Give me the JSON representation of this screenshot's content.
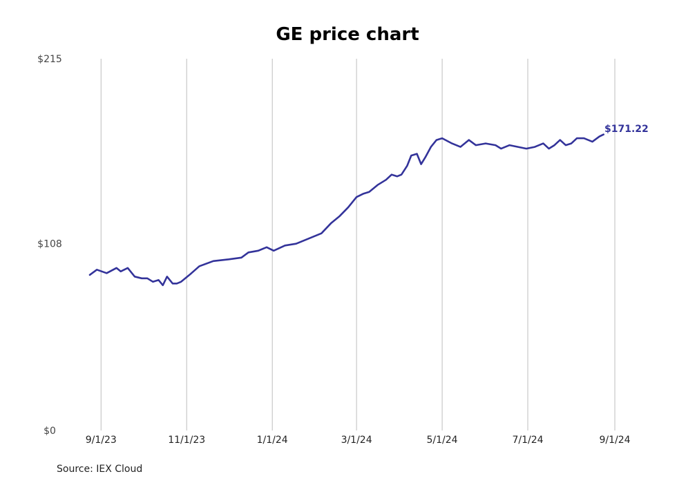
{
  "chart_data": {
    "type": "line",
    "title": "GE price chart",
    "xlabel": "",
    "ylabel": "",
    "source": "Source: IEX Cloud",
    "ylim": [
      0,
      215
    ],
    "xlim": [
      "2023-08-24",
      "2024-09-01"
    ],
    "yticks": [
      {
        "value": 0,
        "label": "$0"
      },
      {
        "value": 108,
        "label": "$108"
      },
      {
        "value": 215,
        "label": "$215"
      }
    ],
    "xticks": [
      {
        "date": "2023-09-01",
        "label": "9/1/23"
      },
      {
        "date": "2023-11-01",
        "label": "11/1/23"
      },
      {
        "date": "2024-01-01",
        "label": "1/1/24"
      },
      {
        "date": "2024-03-01",
        "label": "3/1/24"
      },
      {
        "date": "2024-05-01",
        "label": "5/1/24"
      },
      {
        "date": "2024-07-01",
        "label": "7/1/24"
      },
      {
        "date": "2024-09-01",
        "label": "9/1/24"
      }
    ],
    "grid": "vertical",
    "line_color": "#33339a",
    "end_label": "$171.22",
    "series": [
      {
        "x": [
          "2023-08-24",
          "2023-08-29",
          "2023-09-05",
          "2023-09-12",
          "2023-09-15",
          "2023-09-20",
          "2023-09-25",
          "2023-09-30",
          "2023-10-04",
          "2023-10-08",
          "2023-10-12",
          "2023-10-15",
          "2023-10-18",
          "2023-10-22",
          "2023-10-25",
          "2023-10-28",
          "2023-11-03",
          "2023-11-10",
          "2023-11-20",
          "2023-12-01",
          "2023-12-10",
          "2023-12-15",
          "2023-12-22",
          "2023-12-28",
          "2024-01-02",
          "2024-01-10",
          "2024-01-18",
          "2024-01-24",
          "2024-01-30",
          "2024-02-05",
          "2024-02-12",
          "2024-02-18",
          "2024-02-24",
          "2024-02-28",
          "2024-03-01",
          "2024-03-06",
          "2024-03-10",
          "2024-03-16",
          "2024-03-22",
          "2024-03-26",
          "2024-03-30",
          "2024-04-02",
          "2024-04-06",
          "2024-04-09",
          "2024-04-13",
          "2024-04-16",
          "2024-04-19",
          "2024-04-23",
          "2024-04-27",
          "2024-05-01",
          "2024-05-08",
          "2024-05-14",
          "2024-05-20",
          "2024-05-25",
          "2024-06-01",
          "2024-06-08",
          "2024-06-12",
          "2024-06-18",
          "2024-06-24",
          "2024-06-30",
          "2024-07-06",
          "2024-07-12",
          "2024-07-16",
          "2024-07-20",
          "2024-07-24",
          "2024-07-28",
          "2024-08-01",
          "2024-08-05",
          "2024-08-10",
          "2024-08-16",
          "2024-08-21",
          "2024-08-24"
        ],
        "values": [
          90,
          93,
          91,
          94,
          92,
          94,
          89,
          88,
          88,
          86,
          87,
          84,
          89,
          85,
          85,
          86,
          90,
          95,
          98,
          99,
          100,
          103,
          104,
          106,
          104,
          107,
          108,
          110,
          112,
          114,
          120,
          124,
          129,
          133,
          135,
          137,
          138,
          142,
          145,
          148,
          147,
          148,
          153,
          159,
          160,
          154,
          158,
          164,
          168,
          169,
          166,
          164,
          168,
          165,
          166,
          165,
          163,
          165,
          164,
          163,
          164,
          166,
          163,
          165,
          168,
          165,
          166,
          169,
          169,
          167,
          170,
          171.22
        ]
      }
    ]
  }
}
